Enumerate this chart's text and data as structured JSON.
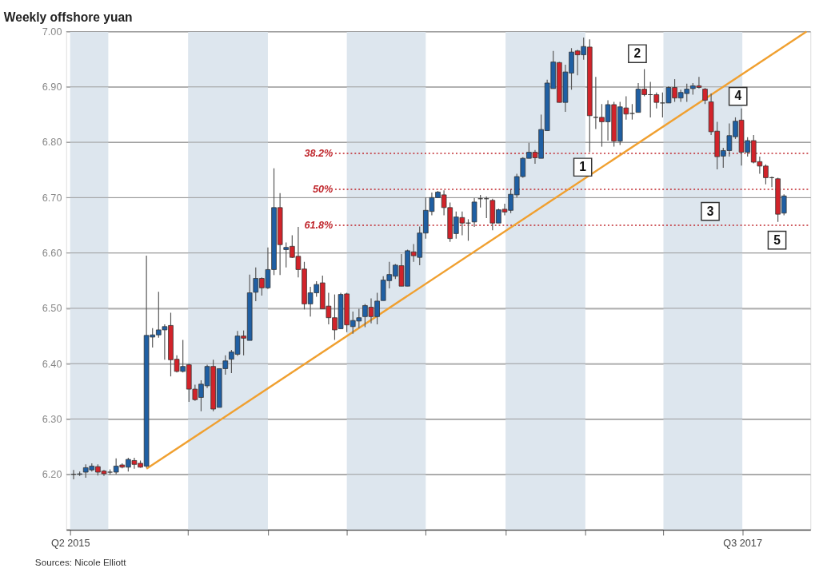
{
  "chart_data": {
    "type": "candlestick",
    "title": "Weekly offshore yuan",
    "x": [
      "2015-05-22",
      "2015-05-29",
      "2015-06-05",
      "2015-06-12",
      "2015-06-19",
      "2015-06-26",
      "2015-07-03",
      "2015-07-10",
      "2015-07-17",
      "2015-07-24",
      "2015-07-31",
      "2015-08-07",
      "2015-08-14",
      "2015-08-21",
      "2015-08-28",
      "2015-09-04",
      "2015-09-11",
      "2015-09-18",
      "2015-09-25",
      "2015-10-02",
      "2015-10-09",
      "2015-10-16",
      "2015-10-23",
      "2015-10-30",
      "2015-11-06",
      "2015-11-13",
      "2015-11-20",
      "2015-11-27",
      "2015-12-04",
      "2015-12-11",
      "2015-12-18",
      "2015-12-25",
      "2016-01-01",
      "2016-01-08",
      "2016-01-15",
      "2016-01-22",
      "2016-01-29",
      "2016-02-05",
      "2016-02-12",
      "2016-02-19",
      "2016-02-26",
      "2016-03-04",
      "2016-03-11",
      "2016-03-18",
      "2016-03-25",
      "2016-04-01",
      "2016-04-08",
      "2016-04-15",
      "2016-04-22",
      "2016-04-29",
      "2016-05-06",
      "2016-05-13",
      "2016-05-20",
      "2016-05-27",
      "2016-06-03",
      "2016-06-10",
      "2016-06-17",
      "2016-06-24",
      "2016-07-01",
      "2016-07-08",
      "2016-07-15",
      "2016-07-22",
      "2016-07-29",
      "2016-08-05",
      "2016-08-12",
      "2016-08-19",
      "2016-08-26",
      "2016-09-02",
      "2016-09-09",
      "2016-09-16",
      "2016-09-23",
      "2016-09-30",
      "2016-10-07",
      "2016-10-14",
      "2016-10-21",
      "2016-10-28",
      "2016-11-04",
      "2016-11-11",
      "2016-11-18",
      "2016-11-25",
      "2016-12-02",
      "2016-12-09",
      "2016-12-16",
      "2016-12-23",
      "2016-12-30",
      "2017-01-06",
      "2017-01-13",
      "2017-01-20",
      "2017-01-27",
      "2017-02-03",
      "2017-02-10",
      "2017-02-17",
      "2017-02-24",
      "2017-03-03",
      "2017-03-10",
      "2017-03-17",
      "2017-03-24",
      "2017-03-31",
      "2017-04-07",
      "2017-04-14",
      "2017-04-21",
      "2017-04-28",
      "2017-05-05",
      "2017-05-12",
      "2017-05-19",
      "2017-05-26",
      "2017-06-02",
      "2017-06-09",
      "2017-06-16",
      "2017-06-23",
      "2017-06-30",
      "2017-07-07",
      "2017-07-14",
      "2017-07-21",
      "2017-07-28",
      "2017-08-04",
      "2017-08-11",
      "2017-08-18"
    ],
    "ohlc": [
      [
        6.2,
        6.208,
        6.191,
        6.2
      ],
      [
        6.2,
        6.205,
        6.197,
        6.201
      ],
      [
        6.204,
        6.218,
        6.194,
        6.212
      ],
      [
        6.208,
        6.22,
        6.205,
        6.215
      ],
      [
        6.214,
        6.218,
        6.198,
        6.204
      ],
      [
        6.206,
        6.208,
        6.197,
        6.201
      ],
      [
        6.204,
        6.209,
        6.2,
        6.204
      ],
      [
        6.204,
        6.229,
        6.2,
        6.215
      ],
      [
        6.217,
        6.22,
        6.211,
        6.213
      ],
      [
        6.213,
        6.23,
        6.205,
        6.227
      ],
      [
        6.225,
        6.23,
        6.21,
        6.218
      ],
      [
        6.22,
        6.225,
        6.212,
        6.213
      ],
      [
        6.215,
        6.595,
        6.212,
        6.451
      ],
      [
        6.448,
        6.464,
        6.429,
        6.452
      ],
      [
        6.452,
        6.53,
        6.447,
        6.461
      ],
      [
        6.461,
        6.471,
        6.407,
        6.467
      ],
      [
        6.469,
        6.492,
        6.377,
        6.407
      ],
      [
        6.408,
        6.415,
        6.384,
        6.386
      ],
      [
        6.386,
        6.443,
        6.384,
        6.395
      ],
      [
        6.398,
        6.4,
        6.331,
        6.354
      ],
      [
        6.354,
        6.362,
        6.333,
        6.335
      ],
      [
        6.339,
        6.37,
        6.314,
        6.363
      ],
      [
        6.36,
        6.398,
        6.356,
        6.395
      ],
      [
        6.395,
        6.407,
        6.314,
        6.318
      ],
      [
        6.321,
        6.391,
        6.321,
        6.391
      ],
      [
        6.391,
        6.415,
        6.38,
        6.405
      ],
      [
        6.408,
        6.425,
        6.383,
        6.421
      ],
      [
        6.417,
        6.459,
        6.414,
        6.45
      ],
      [
        6.45,
        6.46,
        6.415,
        6.446
      ],
      [
        6.442,
        6.561,
        6.442,
        6.528
      ],
      [
        6.529,
        6.574,
        6.513,
        6.554
      ],
      [
        6.554,
        6.556,
        6.523,
        6.537
      ],
      [
        6.537,
        6.61,
        6.535,
        6.57
      ],
      [
        6.57,
        6.753,
        6.56,
        6.682
      ],
      [
        6.682,
        6.708,
        6.56,
        6.615
      ],
      [
        6.606,
        6.619,
        6.574,
        6.61
      ],
      [
        6.612,
        6.632,
        6.591,
        6.592
      ],
      [
        6.594,
        6.647,
        6.556,
        6.57
      ],
      [
        6.571,
        6.584,
        6.498,
        6.508
      ],
      [
        6.508,
        6.539,
        6.485,
        6.528
      ],
      [
        6.528,
        6.549,
        6.521,
        6.543
      ],
      [
        6.546,
        6.559,
        6.499,
        6.499
      ],
      [
        6.504,
        6.528,
        6.471,
        6.483
      ],
      [
        6.483,
        6.525,
        6.443,
        6.461
      ],
      [
        6.463,
        6.528,
        6.463,
        6.525
      ],
      [
        6.526,
        6.528,
        6.457,
        6.47
      ],
      [
        6.467,
        6.494,
        6.454,
        6.478
      ],
      [
        6.477,
        6.499,
        6.464,
        6.483
      ],
      [
        6.485,
        6.508,
        6.466,
        6.505
      ],
      [
        6.502,
        6.518,
        6.473,
        6.485
      ],
      [
        6.485,
        6.528,
        6.471,
        6.513
      ],
      [
        6.514,
        6.558,
        6.514,
        6.551
      ],
      [
        6.55,
        6.584,
        6.536,
        6.561
      ],
      [
        6.558,
        6.58,
        6.553,
        6.578
      ],
      [
        6.577,
        6.598,
        6.54,
        6.54
      ],
      [
        6.54,
        6.606,
        6.54,
        6.604
      ],
      [
        6.602,
        6.616,
        6.584,
        6.595
      ],
      [
        6.592,
        6.648,
        6.578,
        6.636
      ],
      [
        6.636,
        6.7,
        6.626,
        6.677
      ],
      [
        6.675,
        6.709,
        6.668,
        6.7
      ],
      [
        6.7,
        6.712,
        6.7,
        6.71
      ],
      [
        6.705,
        6.713,
        6.668,
        6.682
      ],
      [
        6.682,
        6.691,
        6.62,
        6.626
      ],
      [
        6.635,
        6.675,
        6.626,
        6.665
      ],
      [
        6.664,
        6.675,
        6.632,
        6.654
      ],
      [
        6.654,
        6.661,
        6.622,
        6.654
      ],
      [
        6.656,
        6.699,
        6.647,
        6.692
      ],
      [
        6.698,
        6.705,
        6.682,
        6.698
      ],
      [
        6.698,
        6.702,
        6.663,
        6.698
      ],
      [
        6.695,
        6.698,
        6.641,
        6.654
      ],
      [
        6.654,
        6.68,
        6.654,
        6.678
      ],
      [
        6.679,
        6.689,
        6.668,
        6.674
      ],
      [
        6.677,
        6.715,
        6.672,
        6.706
      ],
      [
        6.705,
        6.743,
        6.7,
        6.738
      ],
      [
        6.738,
        6.773,
        6.736,
        6.771
      ],
      [
        6.771,
        6.799,
        6.771,
        6.782
      ],
      [
        6.782,
        6.786,
        6.761,
        6.772
      ],
      [
        6.771,
        6.85,
        6.771,
        6.823
      ],
      [
        6.821,
        6.913,
        6.821,
        6.907
      ],
      [
        6.897,
        6.965,
        6.897,
        6.945
      ],
      [
        6.944,
        6.945,
        6.872,
        6.872
      ],
      [
        6.872,
        6.94,
        6.855,
        6.927
      ],
      [
        6.925,
        6.97,
        6.895,
        6.963
      ],
      [
        6.965,
        6.967,
        6.921,
        6.958
      ],
      [
        6.958,
        6.989,
        6.949,
        6.973
      ],
      [
        6.972,
        6.986,
        6.782,
        6.848
      ],
      [
        6.845,
        6.918,
        6.824,
        6.845
      ],
      [
        6.845,
        6.869,
        6.792,
        6.837
      ],
      [
        6.837,
        6.876,
        6.803,
        6.868
      ],
      [
        6.868,
        6.873,
        6.792,
        6.802
      ],
      [
        6.802,
        6.873,
        6.795,
        6.864
      ],
      [
        6.862,
        6.883,
        6.841,
        6.851
      ],
      [
        6.852,
        6.869,
        6.841,
        6.852
      ],
      [
        6.854,
        6.907,
        6.854,
        6.896
      ],
      [
        6.896,
        6.932,
        6.883,
        6.886
      ],
      [
        6.886,
        6.909,
        6.845,
        6.886
      ],
      [
        6.886,
        6.89,
        6.861,
        6.872
      ],
      [
        6.871,
        6.89,
        6.845,
        6.871
      ],
      [
        6.871,
        6.901,
        6.871,
        6.899
      ],
      [
        6.899,
        6.914,
        6.873,
        6.88
      ],
      [
        6.88,
        6.895,
        6.873,
        6.89
      ],
      [
        6.888,
        6.906,
        6.873,
        6.896
      ],
      [
        6.897,
        6.907,
        6.886,
        6.902
      ],
      [
        6.902,
        6.918,
        6.897,
        6.899
      ],
      [
        6.896,
        6.898,
        6.869,
        6.876
      ],
      [
        6.873,
        6.888,
        6.813,
        6.819
      ],
      [
        6.82,
        6.837,
        6.751,
        6.774
      ],
      [
        6.775,
        6.79,
        6.754,
        6.785
      ],
      [
        6.785,
        6.834,
        6.774,
        6.812
      ],
      [
        6.81,
        6.845,
        6.806,
        6.838
      ],
      [
        6.84,
        6.861,
        6.758,
        6.782
      ],
      [
        6.782,
        6.809,
        6.774,
        6.803
      ],
      [
        6.803,
        6.813,
        6.762,
        6.764
      ],
      [
        6.765,
        6.774,
        6.743,
        6.757
      ],
      [
        6.757,
        6.76,
        6.724,
        6.736
      ],
      [
        6.736,
        6.738,
        6.719,
        6.736
      ],
      [
        6.734,
        6.736,
        6.656,
        6.67
      ],
      [
        6.672,
        6.706,
        6.668,
        6.703
      ]
    ],
    "series": [
      {
        "type": "line",
        "color": "#f0a030",
        "x": [
          "2015-08-14",
          "2017-09-13"
        ],
        "values": [
          6.21,
          7.0
        ]
      }
    ],
    "xlim": [
      "2015-05-18",
      "2017-09-13"
    ],
    "xticks": [
      {
        "value": "2015-05-18",
        "label": "Q2 2015"
      },
      {
        "value": "2015-10-01",
        "label": null
      },
      {
        "value": "2016-01-01",
        "label": null
      },
      {
        "value": "2016-04-01",
        "label": null
      },
      {
        "value": "2016-07-01",
        "label": null
      },
      {
        "value": "2016-10-01",
        "label": null
      },
      {
        "value": "2017-01-01",
        "label": null
      },
      {
        "value": "2017-04-01",
        "label": null
      },
      {
        "value": "2017-07-01",
        "label": "Q3 2017"
      }
    ],
    "ylim": [
      6.1,
      7.0
    ],
    "yticks": [
      {
        "value": 6.2,
        "label": "6.20"
      },
      {
        "value": 6.3,
        "label": "6.30"
      },
      {
        "value": 6.4,
        "label": "6.40"
      },
      {
        "value": 6.5,
        "label": "6.50"
      },
      {
        "value": 6.6,
        "label": "6.60"
      },
      {
        "value": 6.7,
        "label": "6.70"
      },
      {
        "value": 6.8,
        "label": "6.80"
      },
      {
        "value": 6.9,
        "label": "6.90"
      },
      {
        "value": 7.0,
        "label": "7.00"
      }
    ],
    "grid": "y",
    "bands": [
      {
        "axis": "x",
        "from": "2015-05-18",
        "to": "2015-07-01",
        "color": "#dde6ee"
      },
      {
        "axis": "x",
        "from": "2015-10-01",
        "to": "2016-01-01",
        "color": "#dde6ee"
      },
      {
        "axis": "x",
        "from": "2016-04-01",
        "to": "2016-07-01",
        "color": "#dde6ee"
      },
      {
        "axis": "x",
        "from": "2016-10-01",
        "to": "2017-01-01",
        "color": "#dde6ee"
      },
      {
        "axis": "x",
        "from": "2017-04-01",
        "to": "2017-07-01",
        "color": "#dde6ee"
      }
    ],
    "ref_lines": [
      {
        "axis": "y",
        "value": 6.78,
        "color": "#c0272d",
        "line_style": "dotted"
      },
      {
        "axis": "y",
        "value": 6.715,
        "color": "#c0272d",
        "line_style": "dotted"
      },
      {
        "axis": "y",
        "value": 6.65,
        "color": "#c0272d",
        "line_style": "dotted"
      }
    ],
    "annotations": [
      {
        "text": "38.2%",
        "x": "2016-03-16",
        "y": 6.78
      },
      {
        "text": "50%",
        "x": "2016-03-16",
        "y": 6.715
      },
      {
        "text": "61.8%",
        "x": "2016-03-16",
        "y": 6.65
      },
      {
        "text": "1",
        "x": "2016-12-29",
        "y": 6.755
      },
      {
        "text": "2",
        "x": "2017-03-02",
        "y": 6.96
      },
      {
        "text": "3",
        "x": "2017-05-25",
        "y": 6.675
      },
      {
        "text": "4",
        "x": "2017-06-26",
        "y": 6.883
      },
      {
        "text": "5",
        "x": "2017-08-10",
        "y": 6.623
      },
      "Sources: Nicole Elliott"
    ]
  }
}
